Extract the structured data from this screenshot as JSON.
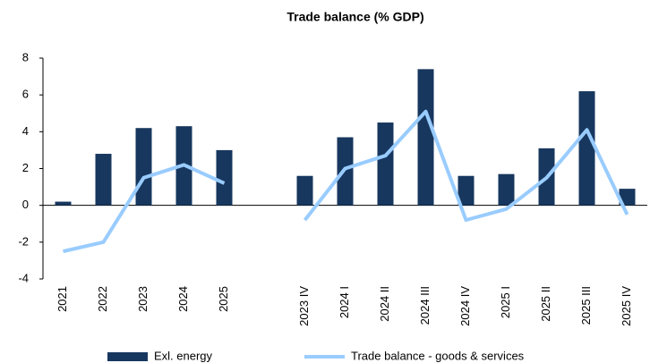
{
  "chart_data": {
    "type": "bar-line",
    "title": "Trade balance (% GDP)",
    "categories": [
      "2021",
      "2022",
      "2023",
      "2024",
      "2025",
      null,
      "2023 IV",
      "2024 I",
      "2024 II",
      "2024 III",
      "2024 IV",
      "2025 I",
      "2025 II",
      "2025 III",
      "2025 IV"
    ],
    "series": [
      {
        "name": "Exl. energy",
        "type": "bar",
        "color": "#17375e",
        "values": [
          0.2,
          2.8,
          4.2,
          4.3,
          3.0,
          null,
          1.6,
          3.7,
          4.5,
          7.4,
          1.6,
          1.7,
          3.1,
          6.2,
          0.9
        ]
      },
      {
        "name": "Trade balance - goods & services",
        "type": "line",
        "color": "#99ccff",
        "values": [
          -2.5,
          -2.0,
          1.5,
          2.2,
          1.2,
          null,
          -0.8,
          2.0,
          2.7,
          5.1,
          -0.8,
          -0.2,
          1.5,
          4.1,
          -0.5
        ]
      }
    ],
    "ylim": [
      -4,
      8
    ],
    "yticks": [
      -4,
      -2,
      0,
      2,
      4,
      6,
      8
    ],
    "legend": "bottom"
  }
}
